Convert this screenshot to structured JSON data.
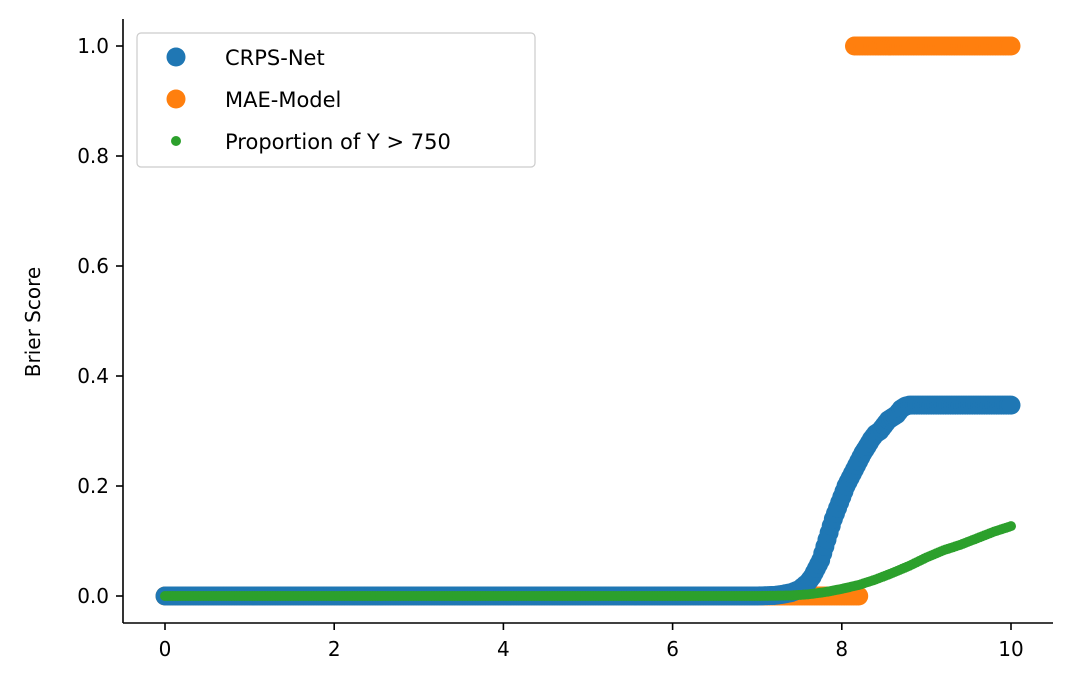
{
  "chart_data": {
    "type": "scatter",
    "title": "",
    "xlabel": "",
    "ylabel": "Brier Score",
    "xlim": [
      -0.5,
      10.5
    ],
    "ylim": [
      -0.05,
      1.05
    ],
    "xticks": [
      0,
      2,
      4,
      6,
      8,
      10
    ],
    "xtick_labels": [
      "0",
      "2",
      "4",
      "6",
      "8",
      "10"
    ],
    "yticks": [
      0.0,
      0.2,
      0.4,
      0.6,
      0.8,
      1.0
    ],
    "ytick_labels": [
      "0.0",
      "0.2",
      "0.4",
      "0.6",
      "0.8",
      "1.0"
    ],
    "grid": false,
    "legend_position": "top-left",
    "series": [
      {
        "name": "CRPS-Net",
        "color": "#1f77b4",
        "marker": "large-circle",
        "points": [
          [
            0.0,
            0.0
          ],
          [
            1.0,
            0.0
          ],
          [
            2.0,
            0.0
          ],
          [
            3.0,
            0.0
          ],
          [
            4.0,
            0.0
          ],
          [
            5.0,
            0.0
          ],
          [
            6.0,
            0.0
          ],
          [
            7.0,
            0.0
          ],
          [
            7.2,
            0.001
          ],
          [
            7.3,
            0.003
          ],
          [
            7.4,
            0.006
          ],
          [
            7.5,
            0.012
          ],
          [
            7.6,
            0.025
          ],
          [
            7.65,
            0.035
          ],
          [
            7.7,
            0.05
          ],
          [
            7.75,
            0.065
          ],
          [
            7.8,
            0.09
          ],
          [
            7.85,
            0.115
          ],
          [
            7.9,
            0.14
          ],
          [
            7.95,
            0.16
          ],
          [
            8.0,
            0.18
          ],
          [
            8.05,
            0.2
          ],
          [
            8.1,
            0.215
          ],
          [
            8.15,
            0.23
          ],
          [
            8.2,
            0.245
          ],
          [
            8.25,
            0.26
          ],
          [
            8.3,
            0.272
          ],
          [
            8.35,
            0.285
          ],
          [
            8.4,
            0.295
          ],
          [
            8.45,
            0.3
          ],
          [
            8.5,
            0.31
          ],
          [
            8.55,
            0.32
          ],
          [
            8.6,
            0.325
          ],
          [
            8.65,
            0.33
          ],
          [
            8.7,
            0.34
          ],
          [
            8.75,
            0.345
          ],
          [
            8.8,
            0.347
          ],
          [
            9.0,
            0.347
          ],
          [
            9.2,
            0.347
          ],
          [
            9.4,
            0.347
          ],
          [
            9.6,
            0.347
          ],
          [
            9.8,
            0.347
          ],
          [
            10.0,
            0.347
          ]
        ]
      },
      {
        "name": "MAE-Model",
        "color": "#ff7f0e",
        "marker": "large-circle",
        "points": [
          [
            0.0,
            0.0
          ],
          [
            1.0,
            0.0
          ],
          [
            2.0,
            0.0
          ],
          [
            3.0,
            0.0
          ],
          [
            4.0,
            0.0
          ],
          [
            5.0,
            0.0
          ],
          [
            6.0,
            0.0
          ],
          [
            7.0,
            0.0
          ],
          [
            7.5,
            0.0
          ],
          [
            8.0,
            0.0
          ],
          [
            8.2,
            0.0
          ],
          [
            8.15,
            1.0
          ],
          [
            8.4,
            1.0
          ],
          [
            8.7,
            1.0
          ],
          [
            9.0,
            1.0
          ],
          [
            9.3,
            1.0
          ],
          [
            9.6,
            1.0
          ],
          [
            10.0,
            1.0
          ]
        ]
      },
      {
        "name": "Proportion of Y > 750",
        "color": "#2ca02c",
        "marker": "small-circle",
        "points": [
          [
            0.0,
            0.0
          ],
          [
            1.0,
            0.0
          ],
          [
            2.0,
            0.0
          ],
          [
            3.0,
            0.0
          ],
          [
            4.0,
            0.0
          ],
          [
            5.0,
            0.0
          ],
          [
            6.0,
            0.0
          ],
          [
            7.0,
            0.0
          ],
          [
            7.4,
            0.001
          ],
          [
            7.6,
            0.003
          ],
          [
            7.8,
            0.007
          ],
          [
            8.0,
            0.013
          ],
          [
            8.2,
            0.02
          ],
          [
            8.4,
            0.03
          ],
          [
            8.6,
            0.042
          ],
          [
            8.8,
            0.055
          ],
          [
            9.0,
            0.07
          ],
          [
            9.2,
            0.083
          ],
          [
            9.4,
            0.093
          ],
          [
            9.6,
            0.105
          ],
          [
            9.8,
            0.117
          ],
          [
            10.0,
            0.127
          ]
        ]
      }
    ]
  }
}
